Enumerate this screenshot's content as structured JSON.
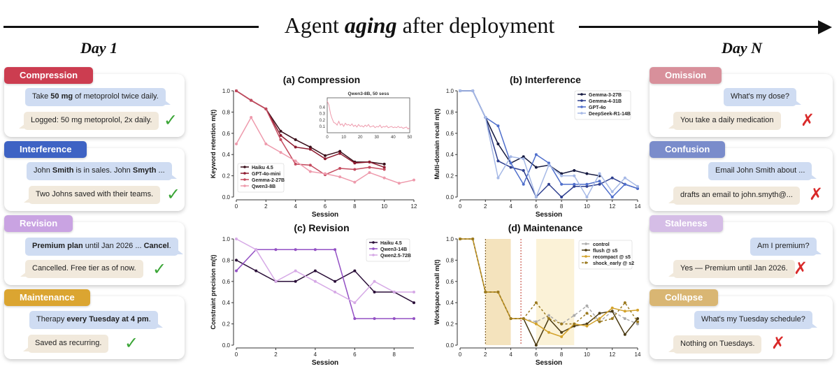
{
  "header": {
    "title_pre": "Agent ",
    "title_em": "aging",
    "title_post": " after deployment",
    "day_start": "Day 1",
    "day_end": "Day N"
  },
  "left_cards": [
    {
      "tag": "Compression",
      "color": "#cc3d50",
      "user_pre": "Take ",
      "user_bold": "50 mg",
      "user_post": " of metoprolol twice daily.",
      "agent": "Logged: 50 mg metoprolol, 2x daily.",
      "mark": "✓"
    },
    {
      "tag": "Interference",
      "color": "#3e63c4",
      "user_pre": "John ",
      "user_bold": "Smith",
      "user_mid": " is in sales. John ",
      "user_bold2": "Smyth",
      "user_post": " ...",
      "agent": "Two Johns saved with their teams.",
      "mark": "✓"
    },
    {
      "tag": "Revision",
      "color": "#c9a3e2",
      "user_bold": "Premium plan",
      "user_mid": " until Jan 2026 ... ",
      "user_bold2": "Cancel",
      "user_post": ".",
      "agent": "Cancelled. Free tier as of now.",
      "mark": "✓"
    },
    {
      "tag": "Maintenance",
      "color": "#dba531",
      "user_pre": "Therapy ",
      "user_bold": "every Tuesday at 4 pm",
      "user_post": ".",
      "agent": "Saved as recurring.",
      "mark": "✓"
    }
  ],
  "right_cards": [
    {
      "tag": "Omission",
      "color": "#d8909b",
      "user": "What's my dose?",
      "agent": "You take a daily medication",
      "mark": "✗"
    },
    {
      "tag": "Confusion",
      "color": "#7a8ccb",
      "user": "Email John Smith about ...",
      "agent": "drafts an email to john.smyth@...",
      "mark": "✗"
    },
    {
      "tag": "Staleness",
      "color": "#d5bde6",
      "user": "Am I premium?",
      "agent": "Yes — Premium until Jan 2026.",
      "mark": "✗"
    },
    {
      "tag": "Collapse",
      "color": "#d9b673",
      "user": "What's my Tuesday schedule?",
      "agent": "Nothing on Tuesdays.",
      "mark": "✗"
    }
  ],
  "chart_data": [
    {
      "id": "a",
      "type": "line",
      "title": "(a) Compression",
      "xlabel": "Session",
      "ylabel": "Keyword retention  m(t)",
      "xlim": [
        0,
        12
      ],
      "ylim": [
        0,
        1.0
      ],
      "xticks": [
        0,
        2,
        4,
        6,
        8,
        10,
        12
      ],
      "yticks": [
        0.0,
        0.2,
        0.4,
        0.6,
        0.8,
        1.0
      ],
      "legend": "lower-left",
      "series": [
        {
          "name": "Haiku 4.5",
          "color": "#3a0e1a",
          "x": [
            0,
            1,
            2,
            3,
            4,
            5,
            6,
            7,
            8,
            9,
            10
          ],
          "y": [
            1.0,
            0.91,
            0.83,
            0.62,
            0.54,
            0.47,
            0.39,
            0.43,
            0.33,
            0.33,
            0.31
          ]
        },
        {
          "name": "GPT-4o-mini",
          "color": "#8e1b2f",
          "x": [
            0,
            1,
            2,
            3,
            4,
            5,
            6,
            7,
            8,
            9,
            10
          ],
          "y": [
            1.0,
            0.91,
            0.83,
            0.58,
            0.47,
            0.45,
            0.36,
            0.41,
            0.32,
            0.33,
            0.28
          ]
        },
        {
          "name": "Gemma-2-27B",
          "color": "#c44a5e",
          "x": [
            0,
            1,
            2,
            3,
            4,
            5,
            6,
            7,
            8,
            9,
            10
          ],
          "y": [
            1.0,
            0.91,
            0.83,
            0.54,
            0.31,
            0.3,
            0.21,
            0.27,
            0.26,
            0.28,
            0.26
          ]
        },
        {
          "name": "Qwen3-8B",
          "color": "#ee9aac",
          "x": [
            0,
            1,
            2,
            3,
            4,
            5,
            6,
            7,
            8,
            9,
            10,
            11,
            12
          ],
          "y": [
            0.5,
            0.75,
            0.5,
            0.42,
            0.34,
            0.24,
            0.22,
            0.19,
            0.14,
            0.23,
            0.18,
            0.13,
            0.16
          ]
        }
      ],
      "inset": {
        "title": "Qwen3-8B, 50 sess",
        "xlim": [
          0,
          50
        ],
        "ylim": [
          0,
          0.55
        ],
        "xticks": [
          0,
          10,
          20,
          30,
          40,
          50
        ],
        "yticks": [
          0.1,
          0.2,
          0.3,
          0.4
        ],
        "color": "#ee9aac",
        "x": [
          0,
          1,
          2,
          3,
          4,
          5,
          6,
          7,
          8,
          9,
          10,
          11,
          12,
          13,
          14,
          15,
          16,
          17,
          18,
          19,
          20,
          21,
          22,
          23,
          24,
          25,
          26,
          27,
          28,
          29,
          30,
          31,
          32,
          33,
          34,
          35,
          36,
          37,
          38,
          39,
          40,
          41,
          42,
          43,
          44,
          45,
          46,
          47,
          48,
          49,
          50
        ],
        "y": [
          0.5,
          0.44,
          0.3,
          0.22,
          0.16,
          0.15,
          0.12,
          0.18,
          0.12,
          0.14,
          0.1,
          0.15,
          0.12,
          0.13,
          0.11,
          0.14,
          0.1,
          0.12,
          0.09,
          0.13,
          0.1,
          0.11,
          0.09,
          0.12,
          0.1,
          0.13,
          0.09,
          0.1,
          0.11,
          0.08,
          0.1,
          0.09,
          0.12,
          0.08,
          0.1,
          0.09,
          0.11,
          0.08,
          0.09,
          0.1,
          0.08,
          0.09,
          0.08,
          0.1,
          0.08,
          0.09,
          0.07,
          0.08,
          0.09,
          0.06,
          0.08
        ]
      }
    },
    {
      "id": "b",
      "type": "line",
      "title": "(b) Interference",
      "xlabel": "Session",
      "ylabel": "Multi-domain recall  m(t)",
      "xlim": [
        0,
        14
      ],
      "ylim": [
        0,
        1.0
      ],
      "xticks": [
        0,
        2,
        4,
        6,
        8,
        10,
        12,
        14
      ],
      "yticks": [
        0.0,
        0.2,
        0.4,
        0.6,
        0.8,
        1.0
      ],
      "legend": "top-right",
      "series": [
        {
          "name": "Gemma-3-27B",
          "color": "#14183f",
          "x": [
            0,
            1,
            2,
            3,
            4,
            5,
            6,
            7,
            8,
            9,
            10,
            11
          ],
          "y": [
            1.0,
            1.0,
            0.75,
            0.5,
            0.32,
            0.38,
            0.28,
            0.3,
            0.22,
            0.25,
            0.22,
            0.2
          ]
        },
        {
          "name": "Gemma-4-31B",
          "color": "#2e3f8f",
          "x": [
            0,
            1,
            2,
            3,
            4,
            5,
            6,
            7,
            8,
            9,
            10,
            11,
            12,
            13,
            14
          ],
          "y": [
            1.0,
            1.0,
            0.75,
            0.34,
            0.28,
            0.25,
            0.0,
            0.12,
            0.0,
            0.1,
            0.1,
            0.12,
            0.18,
            0.12,
            0.08
          ]
        },
        {
          "name": "GPT-4o",
          "color": "#4f6fcc",
          "x": [
            0,
            1,
            2,
            3,
            4,
            5,
            6,
            7,
            8,
            9,
            10,
            11,
            12,
            13,
            14
          ],
          "y": [
            1.0,
            1.0,
            0.75,
            0.67,
            0.32,
            0.12,
            0.4,
            0.32,
            0.12,
            0.12,
            0.12,
            0.15,
            0.0,
            0.12,
            0.08
          ]
        },
        {
          "name": "DeepSeek-R1-14B",
          "color": "#a6b9e6",
          "x": [
            0,
            1,
            2,
            3,
            4,
            5,
            6,
            7,
            8,
            9,
            10,
            11,
            12,
            13,
            14
          ],
          "y": [
            1.0,
            1.0,
            0.75,
            0.18,
            0.38,
            0.36,
            0.0,
            0.3,
            0.2,
            0.2,
            0.0,
            0.22,
            0.05,
            0.18,
            0.1
          ]
        }
      ]
    },
    {
      "id": "c",
      "type": "line",
      "title": "(c) Revision",
      "xlabel": "Session",
      "ylabel": "Constraint precision  m(t)",
      "xlim": [
        0,
        9
      ],
      "ylim": [
        0,
        1.0
      ],
      "xticks": [
        0,
        2,
        4,
        6,
        8
      ],
      "yticks": [
        0.0,
        0.2,
        0.4,
        0.6,
        0.8,
        1.0
      ],
      "legend": "top-right",
      "series": [
        {
          "name": "Haiku 4.5",
          "color": "#2a0e38",
          "x": [
            0,
            1,
            2,
            3,
            4,
            5,
            6,
            7,
            8,
            9
          ],
          "y": [
            0.8,
            0.7,
            0.6,
            0.6,
            0.7,
            0.6,
            0.7,
            0.5,
            0.5,
            0.4
          ]
        },
        {
          "name": "Qwen3-14B",
          "color": "#9350c4",
          "x": [
            0,
            1,
            2,
            3,
            4,
            5,
            6,
            7,
            8,
            9
          ],
          "y": [
            0.7,
            0.9,
            0.9,
            0.9,
            0.9,
            0.9,
            0.25,
            0.25,
            0.25,
            0.25
          ]
        },
        {
          "name": "Qwen2.5-72B",
          "color": "#d6a9e6",
          "x": [
            0,
            1,
            2,
            3,
            4,
            5,
            6,
            7,
            8,
            9
          ],
          "y": [
            1.0,
            0.9,
            0.6,
            0.7,
            0.6,
            0.5,
            0.4,
            0.6,
            0.5,
            0.5
          ]
        }
      ]
    },
    {
      "id": "d",
      "type": "line",
      "title": "(d) Maintenance",
      "xlabel": "Session",
      "ylabel": "Workspace recall  m(t)",
      "xlim": [
        0,
        14
      ],
      "ylim": [
        0,
        1.0
      ],
      "xticks": [
        0,
        2,
        4,
        6,
        8,
        10,
        12,
        14
      ],
      "yticks": [
        0.0,
        0.2,
        0.4,
        0.6,
        0.8,
        1.0
      ],
      "legend": "top-right",
      "shaded": [
        [
          2,
          4
        ],
        [
          6,
          9
        ]
      ],
      "vlines": [
        2,
        4.8
      ],
      "series": [
        {
          "name": "control",
          "color": "#aaaaaa",
          "dash": "4,3",
          "x": [
            0,
            1,
            2,
            3,
            4,
            5,
            6,
            7,
            8,
            9,
            10,
            11,
            12,
            13,
            14
          ],
          "y": [
            1.0,
            1.0,
            0.5,
            0.5,
            0.25,
            0.25,
            0.22,
            0.28,
            0.2,
            0.28,
            0.37,
            0.22,
            0.32,
            0.25,
            0.2
          ]
        },
        {
          "name": "flush @ s5",
          "color": "#4a3a12",
          "dash": "",
          "x": [
            0,
            1,
            2,
            3,
            4,
            5,
            6,
            7,
            8,
            9,
            10,
            11,
            12,
            13,
            14
          ],
          "y": [
            1.0,
            1.0,
            0.5,
            0.5,
            0.25,
            0.25,
            0.0,
            0.25,
            0.12,
            0.18,
            0.2,
            0.3,
            0.32,
            0.1,
            0.25
          ]
        },
        {
          "name": "recompact @ s5",
          "color": "#d3a22b",
          "dash": "",
          "x": [
            0,
            1,
            2,
            3,
            4,
            5,
            6,
            7,
            8,
            9,
            10,
            11,
            12,
            13,
            14
          ],
          "y": [
            1.0,
            1.0,
            0.5,
            0.5,
            0.25,
            0.25,
            0.2,
            0.12,
            0.08,
            0.2,
            0.18,
            0.25,
            0.35,
            0.32,
            0.33
          ]
        },
        {
          "name": "shock_early @ s2",
          "color": "#9b7a1f",
          "dash": "3,3",
          "x": [
            0,
            1,
            2,
            3,
            4,
            5,
            6,
            7,
            8,
            9,
            10,
            11,
            12,
            13,
            14
          ],
          "y": [
            1.0,
            1.0,
            0.5,
            0.5,
            0.25,
            0.25,
            0.4,
            0.25,
            0.2,
            0.2,
            0.3,
            0.22,
            0.25,
            0.4,
            0.22
          ]
        }
      ]
    }
  ]
}
